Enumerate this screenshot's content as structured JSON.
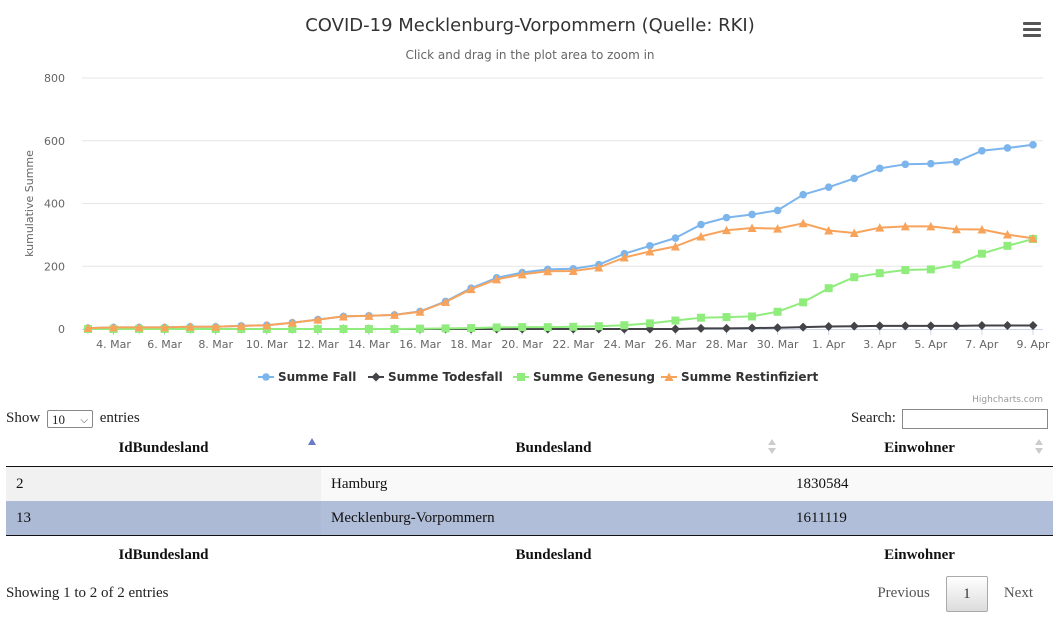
{
  "chart_data": {
    "type": "line",
    "title": "COVID-19 Mecklenburg-Vorpommern (Quelle: RKI)",
    "subtitle": "Click and drag in the plot area to zoom in",
    "ylabel": "kumulative Summe",
    "xlabel": "",
    "ylim": [
      0,
      800
    ],
    "yticks": [
      0,
      200,
      400,
      600,
      800
    ],
    "x": [
      "3. Mar",
      "4. Mar",
      "5. Mar",
      "6. Mar",
      "7. Mar",
      "8. Mar",
      "9. Mar",
      "10. Mar",
      "11. Mar",
      "12. Mar",
      "13. Mar",
      "14. Mar",
      "15. Mar",
      "16. Mar",
      "17. Mar",
      "18. Mar",
      "19. Mar",
      "20. Mar",
      "21. Mar",
      "22. Mar",
      "23. Mar",
      "24. Mar",
      "25. Mar",
      "26. Mar",
      "27. Mar",
      "28. Mar",
      "29. Mar",
      "30. Mar",
      "31. Mar",
      "1. Apr",
      "2. Apr",
      "3. Apr",
      "4. Apr",
      "5. Apr",
      "6. Apr",
      "7. Apr",
      "8. Apr",
      "9. Apr"
    ],
    "xtick_labels": [
      "4. Mar",
      "6. Mar",
      "8. Mar",
      "10. Mar",
      "12. Mar",
      "14. Mar",
      "16. Mar",
      "18. Mar",
      "20. Mar",
      "22. Mar",
      "24. Mar",
      "26. Mar",
      "28. Mar",
      "30. Mar",
      "1. Apr",
      "3. Apr",
      "5. Apr",
      "7. Apr",
      "9. Apr"
    ],
    "grid": true,
    "legend_position": "bottom",
    "series": [
      {
        "name": "Summe Fall",
        "color": "#7cb5ec",
        "marker": "circle",
        "values": [
          3,
          5,
          5,
          5,
          7,
          7,
          10,
          12,
          20,
          30,
          40,
          42,
          45,
          56,
          88,
          130,
          163,
          180,
          190,
          192,
          205,
          240,
          265,
          290,
          333,
          355,
          365,
          378,
          428,
          452,
          480,
          512,
          525,
          527,
          533,
          568,
          577,
          587
        ]
      },
      {
        "name": "Summe Todesfall",
        "color": "#434348",
        "marker": "diamond",
        "values": [
          0,
          0,
          0,
          0,
          0,
          0,
          0,
          0,
          0,
          0,
          0,
          0,
          0,
          0,
          0,
          0,
          0,
          0,
          0,
          0,
          0,
          0,
          0,
          0,
          2,
          2,
          3,
          4,
          6,
          8,
          9,
          10,
          10,
          10,
          10,
          11,
          11,
          11
        ]
      },
      {
        "name": "Summe Genesung",
        "color": "#90ed7d",
        "marker": "square",
        "values": [
          0,
          0,
          0,
          0,
          0,
          0,
          0,
          0,
          0,
          0,
          0,
          0,
          0,
          1,
          2,
          3,
          5,
          6,
          6,
          7,
          9,
          12,
          18,
          27,
          36,
          38,
          40,
          55,
          85,
          130,
          165,
          178,
          188,
          190,
          205,
          240,
          265,
          287
        ]
      },
      {
        "name": "Summe Restinfiziert",
        "color": "#f7a35c",
        "marker": "triangle",
        "values": [
          3,
          5,
          5,
          5,
          7,
          7,
          10,
          12,
          20,
          30,
          40,
          42,
          45,
          55,
          86,
          127,
          158,
          174,
          184,
          185,
          196,
          228,
          247,
          263,
          295,
          315,
          322,
          320,
          337,
          314,
          306,
          323,
          327,
          327,
          318,
          317,
          301,
          289
        ]
      }
    ],
    "credits": "Highcharts.com"
  },
  "table": {
    "length_prefix": "Show",
    "length_value": "10",
    "length_suffix": "entries",
    "search_label": "Search:",
    "search_value": "",
    "columns": [
      "IdBundesland",
      "Bundesland",
      "Einwohner"
    ],
    "rows": [
      [
        "2",
        "Hamburg",
        "1830584"
      ],
      [
        "13",
        "Mecklenburg-Vorpommern",
        "1611119"
      ]
    ],
    "info": "Showing 1 to 2 of 2 entries",
    "pagination": {
      "previous": "Previous",
      "current": "1",
      "next": "Next"
    }
  }
}
